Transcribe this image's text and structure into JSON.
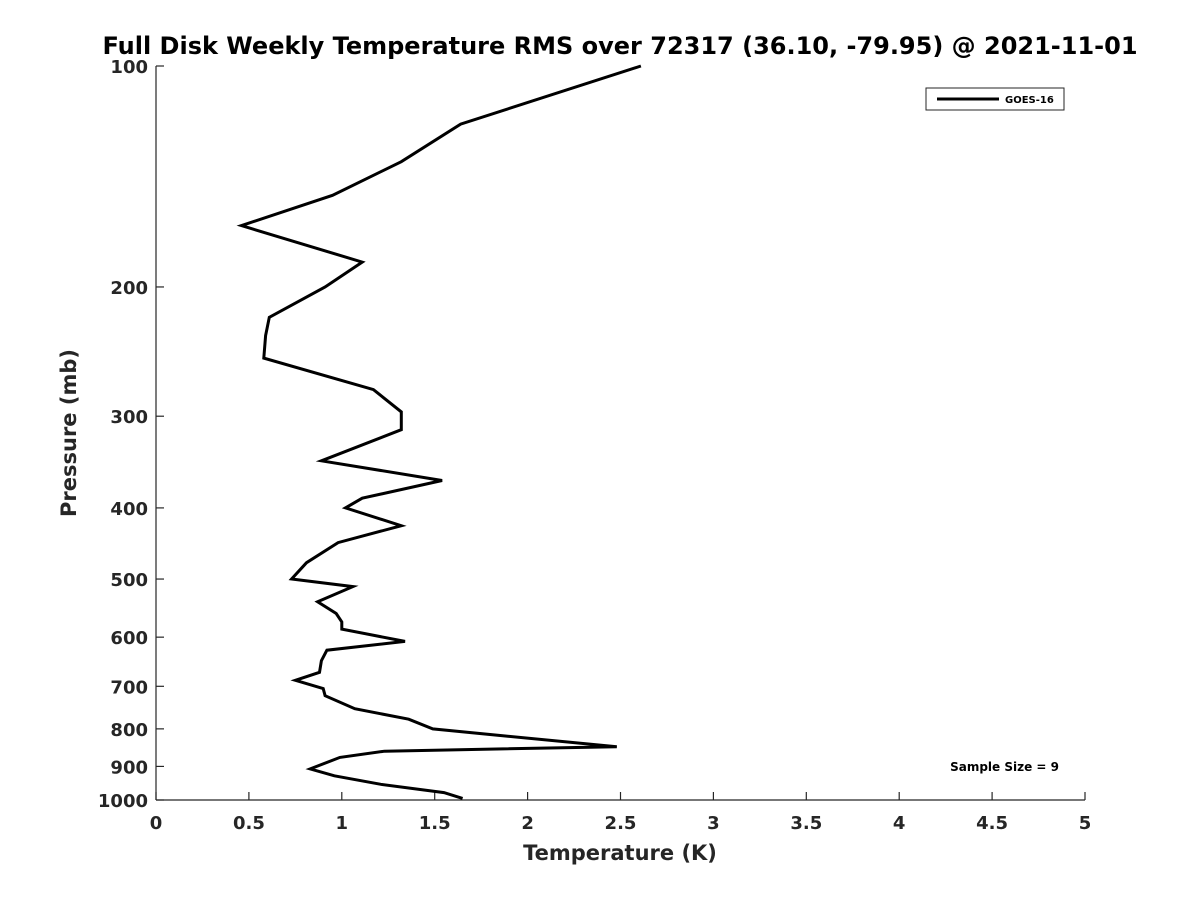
{
  "chart_data": {
    "type": "line",
    "title": "Full Disk Weekly Temperature RMS over 72317 (36.10, -79.95) @ 2021-11-01",
    "xlabel": "Temperature (K)",
    "ylabel": "Pressure (mb)",
    "xlim": [
      0,
      5
    ],
    "ylim": [
      100,
      1000
    ],
    "y_scale": "log",
    "y_reversed": true,
    "x_ticks": [
      "0",
      "0.5",
      "1",
      "1.5",
      "2",
      "2.5",
      "3",
      "3.5",
      "4",
      "4.5",
      "5"
    ],
    "y_ticks": [
      "100",
      "200",
      "300",
      "400",
      "500",
      "600",
      "700",
      "800",
      "900",
      "1000"
    ],
    "grid": false,
    "legend": {
      "position": "top-right",
      "entries": [
        "GOES-16"
      ]
    },
    "annotation": "Sample Size = 9",
    "series": [
      {
        "name": "GOES-16",
        "color": "#000000",
        "x": [
          2.61,
          1.64,
          1.32,
          0.95,
          0.46,
          1.11,
          0.91,
          0.61,
          0.59,
          0.58,
          1.17,
          1.32,
          1.32,
          0.89,
          1.54,
          1.11,
          1.02,
          1.32,
          0.98,
          0.81,
          0.73,
          1.06,
          0.87,
          0.97,
          1.0,
          1.0,
          1.34,
          0.92,
          0.89,
          0.88,
          0.75,
          0.9,
          0.91,
          1.07,
          1.36,
          1.49,
          1.88,
          2.48,
          1.23,
          0.99,
          0.83,
          0.96,
          1.21,
          1.55,
          1.65
        ],
        "y": [
          100,
          120,
          135,
          150,
          165,
          185,
          200,
          220,
          233,
          250,
          276,
          296,
          313,
          345,
          367,
          388,
          400,
          423,
          446,
          475,
          500,
          512,
          537,
          557,
          572,
          585,
          608,
          625,
          646,
          670,
          687,
          705,
          721,
          751,
          776,
          800,
          818,
          846,
          858,
          875,
          907,
          927,
          952,
          977,
          995
        ]
      }
    ]
  }
}
